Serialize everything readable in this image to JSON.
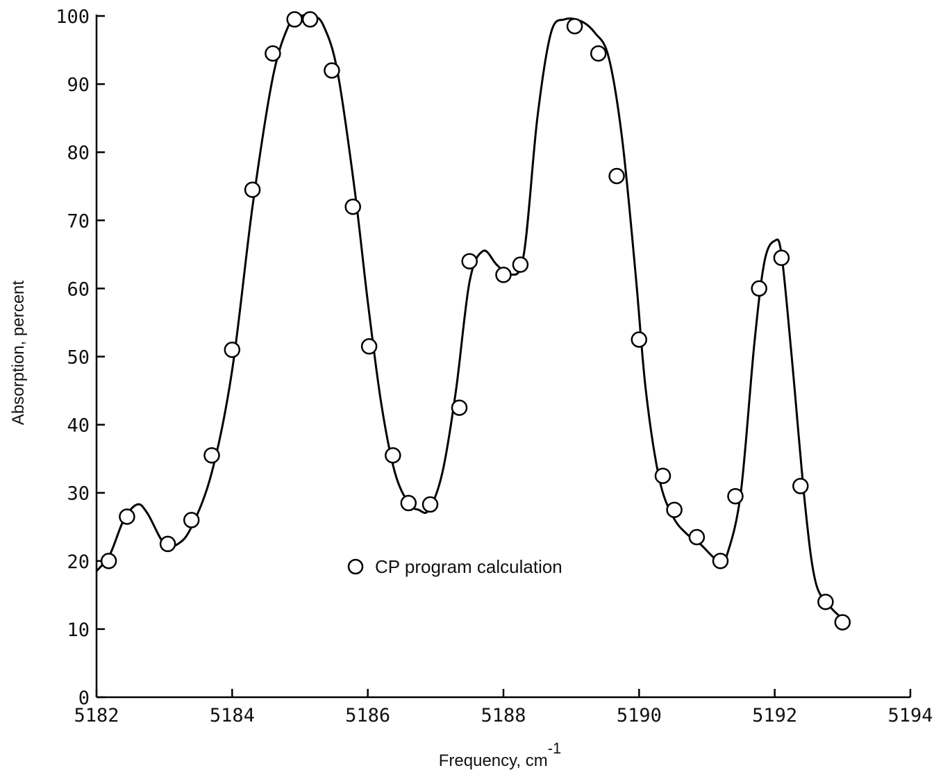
{
  "chart_data": {
    "type": "line",
    "title": "",
    "xlabel": "Frequency, cm",
    "xlabel_superscript": "-1",
    "ylabel": "Absorption, percent",
    "xlim": [
      5182,
      5194
    ],
    "ylim": [
      0,
      100
    ],
    "x_ticks": [
      "5182",
      "5184",
      "5186",
      "5188",
      "5190",
      "5192",
      "5194"
    ],
    "y_ticks": [
      "0",
      "10",
      "20",
      "30",
      "40",
      "50",
      "60",
      "70",
      "80",
      "90",
      "100"
    ],
    "grid": false,
    "legend": {
      "position": "center",
      "entries": [
        "CP program calculation"
      ]
    },
    "series": [
      {
        "name": "",
        "kind": "curve",
        "x": [
          5182.0,
          5182.2,
          5182.4,
          5182.6,
          5182.75,
          5183.0,
          5183.2,
          5183.4,
          5183.7,
          5184.0,
          5184.3,
          5184.6,
          5184.85,
          5185.0,
          5185.2,
          5185.35,
          5185.55,
          5185.8,
          5186.0,
          5186.2,
          5186.4,
          5186.6,
          5186.75,
          5186.9,
          5187.1,
          5187.3,
          5187.5,
          5187.7,
          5187.9,
          5188.1,
          5188.3,
          5188.5,
          5188.7,
          5188.9,
          5189.15,
          5189.35,
          5189.55,
          5189.75,
          5189.95,
          5190.1,
          5190.3,
          5190.5,
          5190.7,
          5190.9,
          5191.1,
          5191.2,
          5191.3,
          5191.5,
          5191.7,
          5191.85,
          5192.0,
          5192.1,
          5192.25,
          5192.45,
          5192.6,
          5192.8,
          5193.0
        ],
        "y": [
          18.5,
          21.0,
          26.0,
          28.3,
          27.0,
          22.5,
          22.5,
          25.0,
          33.0,
          48.0,
          72.0,
          91.0,
          99.0,
          100.0,
          100.0,
          98.5,
          92.0,
          75.0,
          58.0,
          43.0,
          33.0,
          28.5,
          27.5,
          27.5,
          33.0,
          45.0,
          61.0,
          65.5,
          63.5,
          62.0,
          65.0,
          85.0,
          97.5,
          99.5,
          99.2,
          97.5,
          94.0,
          82.0,
          62.0,
          45.0,
          32.0,
          26.5,
          24.0,
          22.5,
          20.5,
          20.0,
          21.0,
          30.0,
          52.0,
          64.0,
          67.0,
          65.0,
          50.0,
          28.0,
          17.0,
          13.5,
          11.5
        ]
      },
      {
        "name": "CP program calculation",
        "kind": "scatter",
        "x": [
          5182.18,
          5182.45,
          5183.05,
          5183.4,
          5183.7,
          5184.0,
          5184.3,
          5184.6,
          5184.92,
          5185.15,
          5185.47,
          5185.78,
          5186.02,
          5186.37,
          5186.6,
          5186.92,
          5187.35,
          5187.5,
          5188.0,
          5188.25,
          5189.05,
          5189.4,
          5189.67,
          5190.0,
          5190.35,
          5190.52,
          5190.85,
          5191.2,
          5191.42,
          5191.77,
          5192.1,
          5192.38,
          5192.75,
          5193.0
        ],
        "y": [
          20.0,
          26.5,
          22.5,
          26.0,
          35.5,
          51.0,
          74.5,
          94.5,
          99.5,
          99.5,
          92.0,
          72.0,
          51.5,
          35.5,
          28.5,
          28.3,
          42.5,
          64.0,
          62.0,
          63.5,
          98.5,
          94.5,
          76.5,
          52.5,
          32.5,
          27.5,
          23.5,
          20.0,
          29.5,
          60.0,
          64.5,
          31.0,
          14.0,
          11.0
        ]
      }
    ]
  }
}
